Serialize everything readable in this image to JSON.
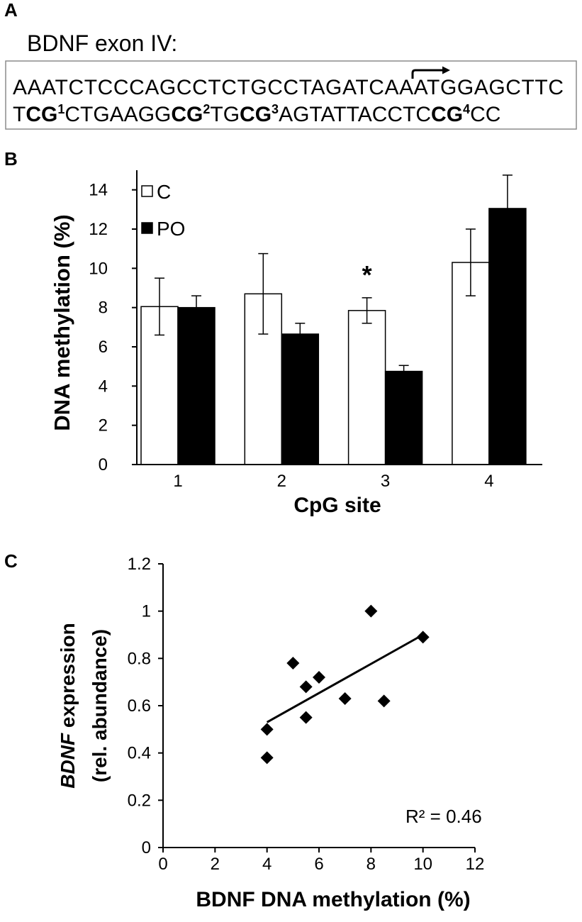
{
  "figure": {
    "panel_a": {
      "label": "A",
      "title": "BDNF exon IV:",
      "sequence_line1": "AAATCTCCCAGCCTCTGCCTAGATCAAATGGAGCTTC",
      "sequence_line2": [
        "T",
        "CG",
        "1",
        "CTGAAGG",
        "CG",
        "2",
        "TG",
        "CG",
        "3",
        "AGTATTACCTC",
        "CG",
        "4",
        "CC"
      ],
      "start_codon_marker": "transcription-start-arrow-icon"
    }
  },
  "chart_data": [
    {
      "panel": "B",
      "type": "bar",
      "categories": [
        "1",
        "2",
        "3",
        "4"
      ],
      "series": [
        {
          "name": "C",
          "values": [
            8.05,
            8.7,
            7.85,
            10.3
          ],
          "errors": [
            1.45,
            2.05,
            0.65,
            1.7
          ],
          "fill": "#ffffff"
        },
        {
          "name": "PO",
          "values": [
            8.0,
            6.65,
            4.75,
            13.05
          ],
          "errors": [
            0.6,
            0.55,
            0.3,
            1.7
          ],
          "fill": "#000000"
        }
      ],
      "xlabel": "CpG site",
      "ylabel": "DNA methylation (%)",
      "ylim": [
        0,
        15
      ],
      "yticks": [
        "0",
        "2",
        "4",
        "6",
        "8",
        "10",
        "12",
        "14"
      ],
      "legend": "top-left",
      "annotations": [
        {
          "text": "*",
          "category": "3",
          "series": "C"
        }
      ]
    },
    {
      "panel": "C",
      "type": "scatter",
      "x": [
        4,
        4,
        5,
        5.5,
        5.5,
        6,
        7,
        8,
        8.5,
        10
      ],
      "y": [
        0.38,
        0.5,
        0.78,
        0.68,
        0.55,
        0.72,
        0.63,
        1.0,
        0.62,
        0.89
      ],
      "trendline": {
        "x": [
          4,
          10
        ],
        "y": [
          0.53,
          0.9
        ]
      },
      "r_squared_label": "R² = 0.46",
      "xlabel": "BDNF DNA methylation (%)",
      "ylabel": {
        "italic": "BDNF",
        "rest": " expression",
        "line2": "(rel. abundance)"
      },
      "xlim": [
        0,
        12
      ],
      "ylim": [
        0,
        1.2
      ],
      "xticks": [
        "0",
        "2",
        "4",
        "6",
        "8",
        "10",
        "12"
      ],
      "yticks": [
        "0",
        "0.2",
        "0.4",
        "0.6",
        "0.8",
        "1",
        "1.2"
      ]
    }
  ]
}
